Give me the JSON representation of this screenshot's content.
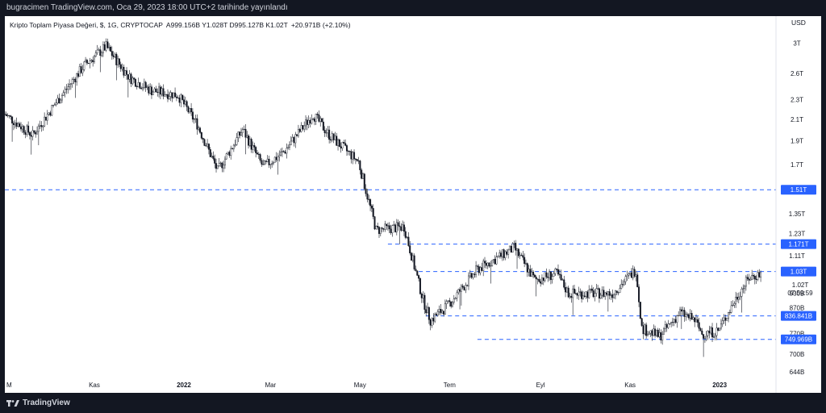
{
  "header": {
    "publish_text": "bugracimen TradingView.com, Oca 29, 2023 18:00 UTC+2 tarihinde yayınlandı"
  },
  "legend": {
    "symbol_line": "Kripto Toplam Piyasa Değeri, $, 1G, CRYPTOCAP",
    "ohlc": "A999.156B  Y1.028T  D995.127B  K1.02T",
    "change": "+20.971B (+2.10%)"
  },
  "footer": {
    "brand": "TradingView",
    "logo_icon": "tradingview-logo-icon"
  },
  "colors": {
    "background": "#ffffff",
    "frame": "#131722",
    "candle": "#131722",
    "level_line": "#2962ff",
    "label_bg": "#2962ff"
  },
  "chart_data": {
    "type": "candlestick",
    "currency_label": "USD",
    "y_scale": "log",
    "y_ticks": [
      {
        "label": "3T",
        "value": 3000
      },
      {
        "label": "2.6T",
        "value": 2600
      },
      {
        "label": "2.3T",
        "value": 2300
      },
      {
        "label": "2.1T",
        "value": 2100
      },
      {
        "label": "1.9T",
        "value": 1900
      },
      {
        "label": "1.7T",
        "value": 1700
      },
      {
        "label": "1.35T",
        "value": 1350
      },
      {
        "label": "1.23T",
        "value": 1230
      },
      {
        "label": "1.11T",
        "value": 1110
      },
      {
        "label": "1.02T",
        "value": 1020
      },
      {
        "label": "930B",
        "value": 930
      },
      {
        "label": "870B",
        "value": 870
      },
      {
        "label": "770B",
        "value": 770
      },
      {
        "label": "700B",
        "value": 700
      },
      {
        "label": "644B",
        "value": 644
      }
    ],
    "current_price_label": "1.02T",
    "countdown": "07:59:59",
    "x_ticks": [
      {
        "label": "M",
        "date": "2021-09-01",
        "bold": false
      },
      {
        "label": "Kas",
        "date": "2021-11-01",
        "bold": false
      },
      {
        "label": "2022",
        "date": "2022-01-01",
        "bold": true
      },
      {
        "label": "Mar",
        "date": "2022-03-01",
        "bold": false
      },
      {
        "label": "May",
        "date": "2022-05-01",
        "bold": false
      },
      {
        "label": "Tem",
        "date": "2022-07-01",
        "bold": false
      },
      {
        "label": "Eyl",
        "date": "2022-09-01",
        "bold": false
      },
      {
        "label": "Kas",
        "date": "2022-11-01",
        "bold": false
      },
      {
        "label": "2023",
        "date": "2023-01-01",
        "bold": true
      }
    ],
    "horizontal_levels": [
      {
        "label": "1.51T",
        "value": 1510,
        "from": "2021-09-01"
      },
      {
        "label": "1.171T",
        "value": 1171,
        "from": "2022-05-20"
      },
      {
        "label": "1.03T",
        "value": 1030,
        "from": "2022-06-10"
      },
      {
        "label": "836.841B",
        "value": 836.841,
        "from": "2022-06-15"
      },
      {
        "label": "749.969B",
        "value": 749.969,
        "from": "2022-07-20"
      }
    ],
    "price_path": [
      {
        "date": "2021-09-01",
        "value": 2150
      },
      {
        "date": "2021-09-20",
        "value": 1950
      },
      {
        "date": "2021-10-05",
        "value": 2250
      },
      {
        "date": "2021-10-25",
        "value": 2700
      },
      {
        "date": "2021-11-09",
        "value": 2950
      },
      {
        "date": "2021-11-25",
        "value": 2550
      },
      {
        "date": "2021-12-10",
        "value": 2400
      },
      {
        "date": "2021-12-28",
        "value": 2350
      },
      {
        "date": "2022-01-10",
        "value": 2050
      },
      {
        "date": "2022-01-24",
        "value": 1650
      },
      {
        "date": "2022-02-10",
        "value": 2000
      },
      {
        "date": "2022-02-24",
        "value": 1680
      },
      {
        "date": "2022-03-10",
        "value": 1800
      },
      {
        "date": "2022-03-30",
        "value": 2150
      },
      {
        "date": "2022-04-10",
        "value": 1950
      },
      {
        "date": "2022-04-30",
        "value": 1720
      },
      {
        "date": "2022-05-12",
        "value": 1250
      },
      {
        "date": "2022-05-31",
        "value": 1270
      },
      {
        "date": "2022-06-13",
        "value": 900
      },
      {
        "date": "2022-06-18",
        "value": 820
      },
      {
        "date": "2022-06-30",
        "value": 880
      },
      {
        "date": "2022-07-20",
        "value": 1040
      },
      {
        "date": "2022-08-14",
        "value": 1150
      },
      {
        "date": "2022-08-28",
        "value": 990
      },
      {
        "date": "2022-09-12",
        "value": 1020
      },
      {
        "date": "2022-09-20",
        "value": 930
      },
      {
        "date": "2022-10-20",
        "value": 930
      },
      {
        "date": "2022-11-05",
        "value": 1040
      },
      {
        "date": "2022-11-09",
        "value": 790
      },
      {
        "date": "2022-11-21",
        "value": 760
      },
      {
        "date": "2022-12-05",
        "value": 850
      },
      {
        "date": "2022-12-15",
        "value": 820
      },
      {
        "date": "2022-12-20",
        "value": 770
      },
      {
        "date": "2022-12-31",
        "value": 780
      },
      {
        "date": "2023-01-14",
        "value": 930
      },
      {
        "date": "2023-01-21",
        "value": 1000
      },
      {
        "date": "2023-01-29",
        "value": 1020
      }
    ]
  }
}
